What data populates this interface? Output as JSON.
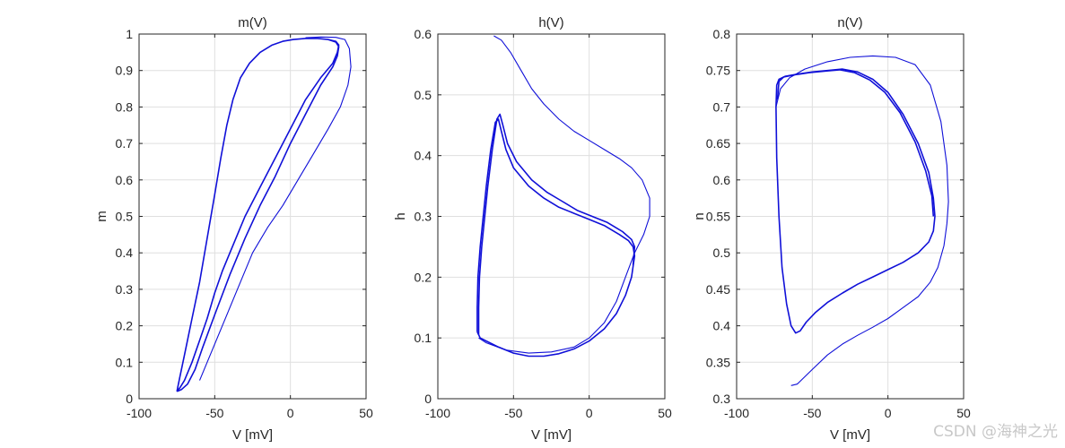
{
  "watermark": "CSDN @海神之光",
  "colors": {
    "line": "#1010d8",
    "axis": "#262626",
    "grid": "#dfdfdf",
    "background": "#ffffff"
  },
  "chart_data": [
    {
      "type": "line",
      "title": "m(V)",
      "xlabel": "V [mV]",
      "ylabel": "m",
      "xlim": [
        -100,
        50
      ],
      "ylim": [
        0,
        1
      ],
      "xticks": [
        "-100",
        "-50",
        "0",
        "50"
      ],
      "yticks": [
        "0",
        "0.1",
        "0.2",
        "0.3",
        "0.4",
        "0.5",
        "0.6",
        "0.7",
        "0.8",
        "0.9",
        "1"
      ],
      "grid": true,
      "series": [
        {
          "points": [
            [
              -75,
              0.02
            ],
            [
              -73,
              0.03
            ],
            [
              -70,
              0.05
            ],
            [
              -65,
              0.1
            ],
            [
              -60,
              0.16
            ],
            [
              -55,
              0.22
            ],
            [
              -50,
              0.29
            ],
            [
              -45,
              0.35
            ],
            [
              -40,
              0.4
            ],
            [
              -35,
              0.45
            ],
            [
              -30,
              0.5
            ],
            [
              -20,
              0.58
            ],
            [
              -10,
              0.66
            ],
            [
              0,
              0.74
            ],
            [
              10,
              0.82
            ],
            [
              20,
              0.88
            ],
            [
              28,
              0.92
            ],
            [
              31,
              0.95
            ],
            [
              32,
              0.97
            ],
            [
              30,
              0.98
            ],
            [
              25,
              0.985
            ],
            [
              18,
              0.988
            ],
            [
              10,
              0.988
            ],
            [
              2,
              0.985
            ],
            [
              -5,
              0.98
            ],
            [
              -12,
              0.97
            ],
            [
              -20,
              0.95
            ],
            [
              -27,
              0.92
            ],
            [
              -33,
              0.88
            ],
            [
              -38,
              0.82
            ],
            [
              -42,
              0.75
            ],
            [
              -46,
              0.66
            ],
            [
              -50,
              0.56
            ],
            [
              -55,
              0.44
            ],
            [
              -60,
              0.32
            ],
            [
              -65,
              0.22
            ],
            [
              -70,
              0.12
            ],
            [
              -73,
              0.06
            ],
            [
              -74.5,
              0.03
            ],
            [
              -75,
              0.02
            ]
          ]
        },
        {
          "points": [
            [
              -75,
              0.02
            ],
            [
              -72,
              0.025
            ],
            [
              -68,
              0.04
            ],
            [
              -63,
              0.08
            ],
            [
              -58,
              0.14
            ],
            [
              -50,
              0.23
            ],
            [
              -40,
              0.34
            ],
            [
              -30,
              0.44
            ],
            [
              -20,
              0.53
            ],
            [
              -10,
              0.61
            ],
            [
              0,
              0.7
            ],
            [
              10,
              0.78
            ],
            [
              20,
              0.86
            ],
            [
              28,
              0.91
            ],
            [
              31,
              0.94
            ],
            [
              32,
              0.965
            ],
            [
              30,
              0.978
            ],
            [
              25,
              0.985
            ]
          ]
        },
        {
          "points": [
            [
              -60,
              0.05
            ],
            [
              -55,
              0.1
            ],
            [
              -45,
              0.2
            ],
            [
              -35,
              0.3
            ],
            [
              -25,
              0.4
            ],
            [
              -15,
              0.47
            ],
            [
              -5,
              0.53
            ],
            [
              5,
              0.6
            ],
            [
              15,
              0.67
            ],
            [
              25,
              0.74
            ],
            [
              33,
              0.8
            ],
            [
              38,
              0.86
            ],
            [
              40,
              0.91
            ],
            [
              39,
              0.96
            ],
            [
              36,
              0.985
            ],
            [
              30,
              0.991
            ],
            [
              20,
              0.992
            ],
            [
              10,
              0.99
            ]
          ]
        }
      ]
    },
    {
      "type": "line",
      "title": "h(V)",
      "xlabel": "V [mV]",
      "ylabel": "h",
      "xlim": [
        -100,
        50
      ],
      "ylim": [
        0,
        0.6
      ],
      "xticks": [
        "-100",
        "-50",
        "0",
        "50"
      ],
      "yticks": [
        "0",
        "0.1",
        "0.2",
        "0.3",
        "0.4",
        "0.5",
        "0.6"
      ],
      "grid": true,
      "series": [
        {
          "points": [
            [
              -74,
              0.11
            ],
            [
              -74,
              0.15
            ],
            [
              -73.5,
              0.2
            ],
            [
              -72,
              0.25
            ],
            [
              -70,
              0.3
            ],
            [
              -68,
              0.35
            ],
            [
              -65,
              0.41
            ],
            [
              -62,
              0.455
            ],
            [
              -60,
              0.46
            ],
            [
              -58,
              0.44
            ],
            [
              -55,
              0.41
            ],
            [
              -50,
              0.38
            ],
            [
              -40,
              0.35
            ],
            [
              -30,
              0.33
            ],
            [
              -20,
              0.315
            ],
            [
              -10,
              0.305
            ],
            [
              0,
              0.295
            ],
            [
              10,
              0.285
            ],
            [
              20,
              0.27
            ],
            [
              26,
              0.26
            ],
            [
              29,
              0.25
            ],
            [
              30,
              0.235
            ],
            [
              28,
              0.2
            ],
            [
              24,
              0.17
            ],
            [
              18,
              0.14
            ],
            [
              10,
              0.115
            ],
            [
              0,
              0.095
            ],
            [
              -10,
              0.082
            ],
            [
              -20,
              0.074
            ],
            [
              -30,
              0.07
            ],
            [
              -40,
              0.07
            ],
            [
              -50,
              0.075
            ],
            [
              -60,
              0.085
            ],
            [
              -68,
              0.095
            ],
            [
              -72,
              0.1
            ],
            [
              -74,
              0.11
            ]
          ]
        },
        {
          "points": [
            [
              -73,
              0.105
            ],
            [
              -73,
              0.15
            ],
            [
              -72.5,
              0.2
            ],
            [
              -71,
              0.25
            ],
            [
              -69,
              0.3
            ],
            [
              -67,
              0.35
            ],
            [
              -64,
              0.41
            ],
            [
              -61,
              0.46
            ],
            [
              -59,
              0.468
            ],
            [
              -57,
              0.45
            ],
            [
              -54,
              0.42
            ],
            [
              -48,
              0.39
            ],
            [
              -38,
              0.36
            ],
            [
              -28,
              0.34
            ],
            [
              -18,
              0.325
            ],
            [
              -8,
              0.31
            ],
            [
              2,
              0.3
            ],
            [
              12,
              0.29
            ],
            [
              22,
              0.275
            ],
            [
              28,
              0.262
            ],
            [
              30,
              0.25
            ],
            [
              29,
              0.22
            ]
          ]
        },
        {
          "points": [
            [
              -63,
              0.597
            ],
            [
              -58,
              0.59
            ],
            [
              -52,
              0.57
            ],
            [
              -45,
              0.54
            ],
            [
              -38,
              0.51
            ],
            [
              -30,
              0.485
            ],
            [
              -20,
              0.46
            ],
            [
              -10,
              0.44
            ],
            [
              0,
              0.425
            ],
            [
              10,
              0.41
            ],
            [
              20,
              0.395
            ],
            [
              28,
              0.38
            ],
            [
              35,
              0.36
            ],
            [
              40,
              0.33
            ],
            [
              40,
              0.3
            ],
            [
              36,
              0.27
            ],
            [
              30,
              0.24
            ],
            [
              24,
              0.2
            ],
            [
              18,
              0.16
            ],
            [
              10,
              0.125
            ],
            [
              0,
              0.1
            ],
            [
              -10,
              0.085
            ],
            [
              -25,
              0.077
            ],
            [
              -40,
              0.075
            ],
            [
              -55,
              0.08
            ],
            [
              -68,
              0.092
            ],
            [
              -73,
              0.1
            ]
          ]
        }
      ]
    },
    {
      "type": "line",
      "title": "n(V)",
      "xlabel": "V [mV]",
      "ylabel": "n",
      "xlim": [
        -100,
        50
      ],
      "ylim": [
        0.3,
        0.8
      ],
      "xticks": [
        "-100",
        "-50",
        "0",
        "50"
      ],
      "yticks": [
        "0.3",
        "0.35",
        "0.4",
        "0.45",
        "0.5",
        "0.55",
        "0.6",
        "0.65",
        "0.7",
        "0.75",
        "0.8"
      ],
      "grid": true,
      "series": [
        {
          "points": [
            [
              -74,
              0.7
            ],
            [
              -73.5,
              0.73
            ],
            [
              -72,
              0.738
            ],
            [
              -68,
              0.742
            ],
            [
              -60,
              0.745
            ],
            [
              -50,
              0.748
            ],
            [
              -40,
              0.75
            ],
            [
              -30,
              0.752
            ],
            [
              -20,
              0.748
            ],
            [
              -10,
              0.738
            ],
            [
              0,
              0.72
            ],
            [
              10,
              0.69
            ],
            [
              20,
              0.65
            ],
            [
              27,
              0.61
            ],
            [
              30,
              0.575
            ],
            [
              31,
              0.55
            ],
            [
              30,
              0.53
            ],
            [
              27,
              0.515
            ],
            [
              20,
              0.5
            ],
            [
              10,
              0.487
            ],
            [
              0,
              0.477
            ],
            [
              -10,
              0.467
            ],
            [
              -20,
              0.457
            ],
            [
              -30,
              0.445
            ],
            [
              -40,
              0.432
            ],
            [
              -48,
              0.418
            ],
            [
              -54,
              0.405
            ],
            [
              -58,
              0.393
            ],
            [
              -61,
              0.39
            ],
            [
              -64,
              0.4
            ],
            [
              -67,
              0.43
            ],
            [
              -70,
              0.48
            ],
            [
              -72,
              0.55
            ],
            [
              -73.5,
              0.63
            ],
            [
              -74,
              0.7
            ]
          ]
        },
        {
          "points": [
            [
              -73,
              0.71
            ],
            [
              -72,
              0.735
            ],
            [
              -69,
              0.741
            ],
            [
              -62,
              0.744
            ],
            [
              -52,
              0.747
            ],
            [
              -42,
              0.749
            ],
            [
              -32,
              0.751
            ],
            [
              -22,
              0.747
            ],
            [
              -12,
              0.737
            ],
            [
              -2,
              0.72
            ],
            [
              8,
              0.692
            ],
            [
              18,
              0.652
            ],
            [
              25,
              0.612
            ],
            [
              29,
              0.578
            ],
            [
              30,
              0.55
            ]
          ]
        },
        {
          "points": [
            [
              -64,
              0.318
            ],
            [
              -60,
              0.32
            ],
            [
              -50,
              0.34
            ],
            [
              -40,
              0.36
            ],
            [
              -30,
              0.375
            ],
            [
              -20,
              0.387
            ],
            [
              -10,
              0.398
            ],
            [
              0,
              0.41
            ],
            [
              10,
              0.425
            ],
            [
              20,
              0.44
            ],
            [
              28,
              0.46
            ],
            [
              33,
              0.48
            ],
            [
              37,
              0.51
            ],
            [
              39,
              0.54
            ],
            [
              40,
              0.57
            ],
            [
              39,
              0.62
            ],
            [
              35,
              0.68
            ],
            [
              28,
              0.73
            ],
            [
              18,
              0.758
            ],
            [
              5,
              0.768
            ],
            [
              -10,
              0.77
            ],
            [
              -25,
              0.768
            ],
            [
              -40,
              0.762
            ],
            [
              -55,
              0.752
            ],
            [
              -65,
              0.74
            ],
            [
              -71,
              0.725
            ],
            [
              -74,
              0.7
            ]
          ]
        }
      ]
    }
  ]
}
